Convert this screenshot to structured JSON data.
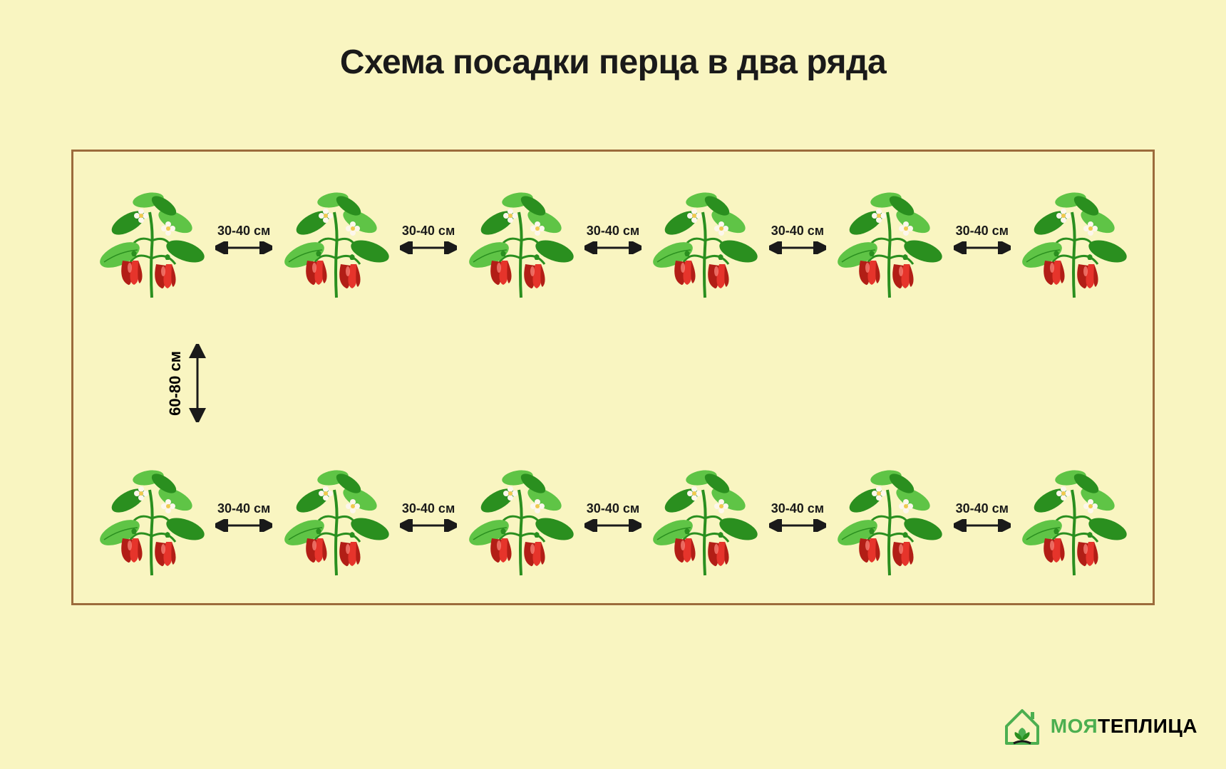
{
  "title": "Схема посадки перца в два ряда",
  "title_fontsize": 48,
  "title_color": "#1a1a1a",
  "background_color": "#f9f5c1",
  "bed": {
    "border_color": "#9c6b3c",
    "fill_color": "transparent"
  },
  "plant": {
    "leaf_light": "#5fc446",
    "leaf_dark": "#2a8f1f",
    "stem": "#2a8f1f",
    "pepper_red": "#e6342b",
    "pepper_dark": "#b21e16",
    "pepper_hilite": "#ff8a80",
    "flower_white": "#fdf7ec",
    "flower_center": "#f0c94e"
  },
  "spacing": {
    "horizontal_label": "30-40 см",
    "vertical_label": "60-80 см",
    "arrow_color": "#1a1a1a",
    "label_color": "#1a1a1a"
  },
  "rows": 2,
  "plants_per_row": 6,
  "gaps_per_row": 5,
  "logo": {
    "brand_green": "#4caf50",
    "brand_black": "#1a1a1a",
    "text_part1": "МОЯ",
    "text_part2": "ТЕПЛИЦА"
  }
}
